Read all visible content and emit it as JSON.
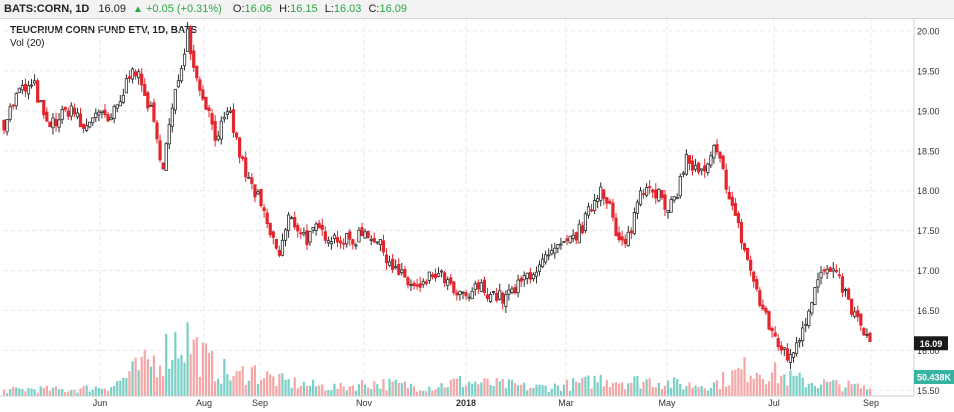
{
  "header": {
    "symbol": "BATS:CORN, 1D",
    "last": "16.09",
    "change": "+0.05 (+0.31%)",
    "up_arrow": "▲",
    "o_key": "O:",
    "o_val": "16.06",
    "h_key": "H:",
    "h_val": "16.15",
    "l_key": "L:",
    "l_val": "16.03",
    "c_key": "C:",
    "c_val": "16.09"
  },
  "legend": {
    "title": "TEUCRIUM CORN FUND ETV, 1D, BATS",
    "vol": "Vol (20)"
  },
  "colors": {
    "up": "#2b2b2b",
    "down": "#e3262d",
    "vol_up": "#79cfc5",
    "vol_down": "#f5a6a6",
    "last_price_bg": "#1a1a1a",
    "volume_badge_bg": "#37b3a3",
    "grid": "#e8e8e8"
  },
  "chart_data": {
    "type": "candlestick",
    "title": "TEUCRIUM CORN FUND ETV, 1D, BATS",
    "y_ticks": [
      "20.00",
      "19.50",
      "19.00",
      "18.50",
      "18.00",
      "17.50",
      "17.00",
      "16.50",
      "16.00",
      "15.50"
    ],
    "ylim": [
      15.43,
      20.15
    ],
    "x_ticks": [
      "Jun",
      "Aug",
      "Sep",
      "Nov",
      "2018",
      "Mar",
      "May",
      "Jul",
      "Sep"
    ],
    "last_price_label": "16.09",
    "volume_label": "50.438K",
    "grid": true,
    "price_path": [
      [
        0,
        18.85
      ],
      [
        5,
        19.25
      ],
      [
        10,
        19.3
      ],
      [
        14,
        18.8
      ],
      [
        18,
        18.9
      ],
      [
        22,
        19.05
      ],
      [
        26,
        18.75
      ],
      [
        30,
        19.0
      ],
      [
        34,
        18.85
      ],
      [
        38,
        19.1
      ],
      [
        42,
        19.6
      ],
      [
        46,
        19.2
      ],
      [
        48,
        19.0
      ],
      [
        50,
        18.6
      ],
      [
        52,
        18.35
      ],
      [
        55,
        19.0
      ],
      [
        58,
        19.6
      ],
      [
        60,
        20.0
      ],
      [
        63,
        19.4
      ],
      [
        66,
        19.1
      ],
      [
        69,
        18.7
      ],
      [
        72,
        18.85
      ],
      [
        74,
        18.95
      ],
      [
        76,
        18.6
      ],
      [
        79,
        18.2
      ],
      [
        83,
        17.9
      ],
      [
        87,
        17.45
      ],
      [
        90,
        17.2
      ],
      [
        93,
        17.65
      ],
      [
        96,
        17.55
      ],
      [
        99,
        17.4
      ],
      [
        102,
        17.5
      ],
      [
        106,
        17.45
      ],
      [
        110,
        17.4
      ],
      [
        114,
        17.35
      ],
      [
        117,
        17.5
      ],
      [
        120,
        17.45
      ],
      [
        124,
        17.25
      ],
      [
        128,
        17.0
      ],
      [
        132,
        16.85
      ],
      [
        136,
        16.75
      ],
      [
        140,
        16.95
      ],
      [
        144,
        16.9
      ],
      [
        147,
        16.7
      ],
      [
        151,
        16.65
      ],
      [
        155,
        16.8
      ],
      [
        159,
        16.72
      ],
      [
        163,
        16.65
      ],
      [
        167,
        16.75
      ],
      [
        171,
        16.95
      ],
      [
        175,
        17.05
      ],
      [
        179,
        17.2
      ],
      [
        183,
        17.3
      ],
      [
        186,
        17.4
      ],
      [
        189,
        17.55
      ],
      [
        192,
        17.8
      ],
      [
        195,
        18.05
      ],
      [
        198,
        17.85
      ],
      [
        200,
        17.4
      ],
      [
        203,
        17.3
      ],
      [
        205,
        17.55
      ],
      [
        208,
        18.0
      ],
      [
        211,
        18.1
      ],
      [
        214,
        17.95
      ],
      [
        217,
        17.7
      ],
      [
        220,
        18.0
      ],
      [
        223,
        18.4
      ],
      [
        226,
        18.25
      ],
      [
        229,
        18.2
      ],
      [
        232,
        18.5
      ],
      [
        234,
        18.35
      ],
      [
        236,
        18.1
      ],
      [
        238,
        17.8
      ],
      [
        241,
        17.4
      ],
      [
        244,
        17.0
      ],
      [
        247,
        16.6
      ],
      [
        250,
        16.3
      ],
      [
        253,
        16.1
      ],
      [
        256,
        15.9
      ],
      [
        259,
        16.1
      ],
      [
        262,
        16.4
      ],
      [
        265,
        16.8
      ],
      [
        268,
        17.0
      ],
      [
        271,
        16.95
      ],
      [
        274,
        16.8
      ],
      [
        277,
        16.5
      ],
      [
        280,
        16.3
      ],
      [
        283,
        16.09
      ]
    ],
    "volume_profile": [
      [
        0,
        9
      ],
      [
        10,
        12
      ],
      [
        20,
        10
      ],
      [
        30,
        14
      ],
      [
        36,
        18
      ],
      [
        42,
        40
      ],
      [
        48,
        55
      ],
      [
        52,
        70
      ],
      [
        56,
        90
      ],
      [
        60,
        95
      ],
      [
        64,
        70
      ],
      [
        68,
        50
      ],
      [
        72,
        40
      ],
      [
        76,
        30
      ],
      [
        80,
        45
      ],
      [
        84,
        35
      ],
      [
        90,
        25
      ],
      [
        100,
        18
      ],
      [
        110,
        14
      ],
      [
        120,
        22
      ],
      [
        130,
        18
      ],
      [
        140,
        15
      ],
      [
        148,
        24
      ],
      [
        154,
        22
      ],
      [
        160,
        20
      ],
      [
        166,
        18
      ],
      [
        172,
        14
      ],
      [
        180,
        16
      ],
      [
        190,
        22
      ],
      [
        196,
        30
      ],
      [
        204,
        24
      ],
      [
        212,
        26
      ],
      [
        222,
        18
      ],
      [
        232,
        20
      ],
      [
        238,
        34
      ],
      [
        244,
        48
      ],
      [
        250,
        40
      ],
      [
        256,
        30
      ],
      [
        262,
        24
      ],
      [
        270,
        20
      ],
      [
        278,
        16
      ],
      [
        283,
        12
      ]
    ]
  }
}
